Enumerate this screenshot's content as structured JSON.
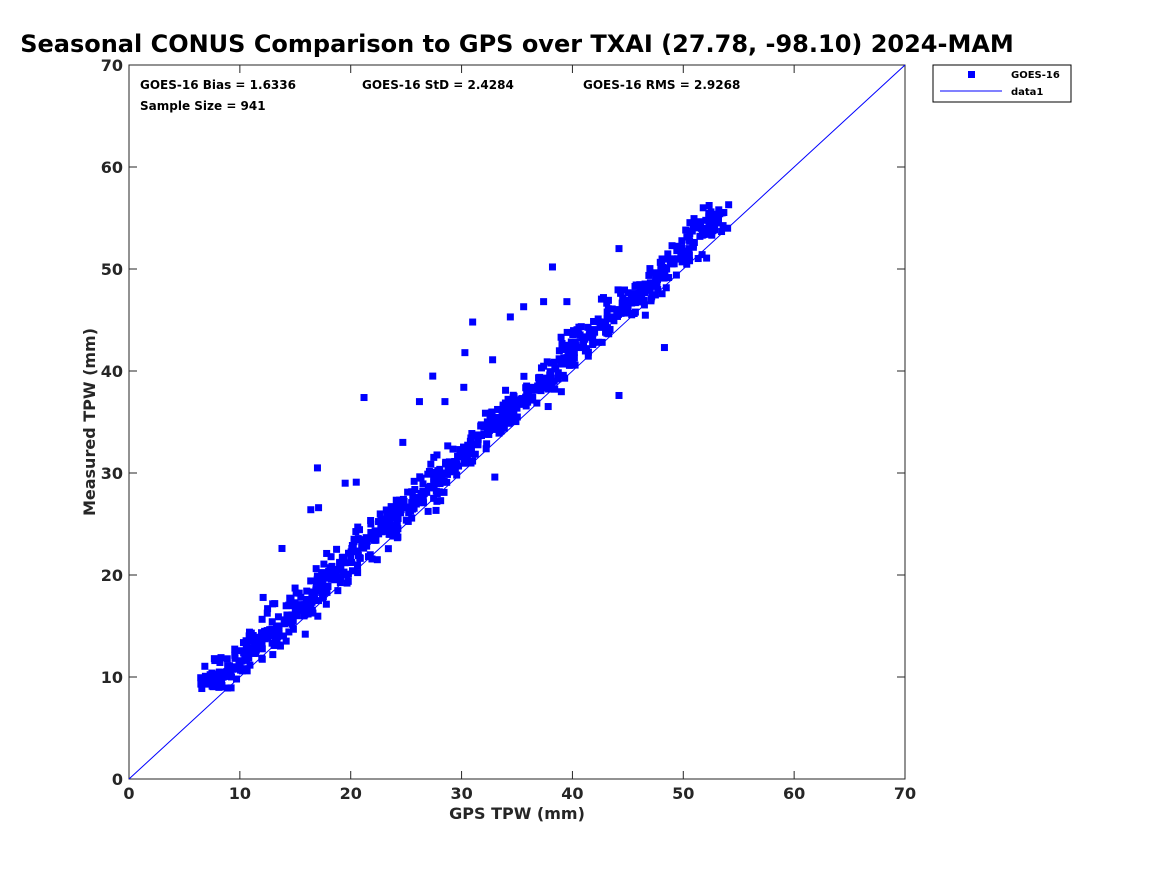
{
  "chart_data": {
    "type": "scatter",
    "title": "Seasonal CONUS Comparison to GPS over TXAI (27.78, -98.10) 2024-MAM",
    "xlabel": "GPS TPW (mm)",
    "ylabel": "Measured TPW (mm)",
    "xlim": [
      0,
      70
    ],
    "ylim": [
      0,
      70
    ],
    "xticks": [
      "0",
      "10",
      "20",
      "30",
      "40",
      "50",
      "60",
      "70"
    ],
    "yticks": [
      "0",
      "10",
      "20",
      "30",
      "40",
      "50",
      "60",
      "70"
    ],
    "grid": false,
    "legend_position": "top-right-outside",
    "series": [
      {
        "name": "GOES-16",
        "kind": "markers",
        "marker": "square",
        "color": "#0000ff",
        "points_summary": "941 points clustered along y = x + 1.63 between x = 6.5 and x = 54"
      },
      {
        "name": "data1",
        "kind": "line",
        "color": "#0000ff",
        "x": [
          0,
          70
        ],
        "y": [
          0,
          70
        ]
      }
    ],
    "stats": {
      "bias_label": "GOES-16 Bias = 1.6336",
      "std_label": "GOES-16 StD = 2.4284",
      "rms_label": "GOES-16 RMS = 2.9268",
      "sample_label": "Sample Size = 941"
    },
    "scatter_core": [
      [
        6.5,
        9.3
      ],
      [
        7.0,
        9.3
      ],
      [
        7.5,
        9.5
      ],
      [
        8.0,
        9.8
      ],
      [
        8.5,
        10.0
      ],
      [
        9.0,
        10.6
      ],
      [
        9.5,
        11.0
      ],
      [
        10.0,
        11.5
      ],
      [
        10.5,
        12.0
      ],
      [
        11.0,
        12.6
      ],
      [
        11.5,
        13.0
      ],
      [
        12.0,
        13.3
      ],
      [
        12.5,
        13.9
      ],
      [
        13.0,
        14.4
      ],
      [
        13.5,
        15.0
      ],
      [
        14.0,
        15.6
      ],
      [
        14.5,
        16.0
      ],
      [
        15.0,
        16.5
      ],
      [
        15.5,
        17.1
      ],
      [
        16.0,
        17.6
      ],
      [
        16.5,
        18.0
      ],
      [
        17.0,
        18.6
      ],
      [
        17.5,
        19.1
      ],
      [
        18.0,
        19.7
      ],
      [
        18.5,
        20.1
      ],
      [
        19.0,
        20.6
      ],
      [
        19.5,
        21.2
      ],
      [
        20.0,
        21.7
      ],
      [
        20.5,
        22.3
      ],
      [
        21.0,
        22.7
      ],
      [
        21.5,
        23.3
      ],
      [
        22.0,
        23.8
      ],
      [
        22.5,
        24.3
      ],
      [
        23.0,
        24.8
      ],
      [
        23.5,
        25.2
      ],
      [
        24.0,
        25.6
      ],
      [
        24.5,
        26.1
      ],
      [
        25.0,
        26.6
      ],
      [
        25.5,
        27.1
      ],
      [
        26.0,
        27.6
      ],
      [
        26.5,
        28.2
      ],
      [
        27.0,
        28.6
      ],
      [
        27.5,
        29.1
      ],
      [
        28.0,
        29.6
      ],
      [
        28.5,
        30.0
      ],
      [
        29.0,
        30.6
      ],
      [
        29.5,
        31.1
      ],
      [
        30.0,
        31.6
      ],
      [
        30.5,
        32.2
      ],
      [
        31.0,
        32.8
      ],
      [
        31.5,
        33.3
      ],
      [
        32.0,
        33.8
      ],
      [
        32.5,
        34.3
      ],
      [
        33.0,
        34.8
      ],
      [
        33.5,
        35.3
      ],
      [
        34.0,
        35.8
      ],
      [
        34.5,
        36.3
      ],
      [
        35.0,
        36.8
      ],
      [
        35.5,
        37.3
      ],
      [
        36.0,
        37.9
      ],
      [
        36.5,
        38.4
      ],
      [
        37.0,
        38.8
      ],
      [
        37.5,
        39.3
      ],
      [
        38.0,
        39.7
      ],
      [
        38.5,
        40.2
      ],
      [
        39.0,
        40.7
      ],
      [
        39.5,
        41.3
      ],
      [
        40.0,
        41.8
      ],
      [
        40.5,
        42.3
      ],
      [
        41.0,
        42.8
      ],
      [
        41.5,
        43.3
      ],
      [
        42.0,
        43.8
      ],
      [
        42.5,
        44.3
      ],
      [
        43.0,
        44.8
      ],
      [
        43.5,
        45.3
      ],
      [
        44.0,
        45.8
      ],
      [
        44.5,
        46.2
      ],
      [
        45.0,
        46.7
      ],
      [
        45.5,
        47.1
      ],
      [
        46.0,
        47.6
      ],
      [
        46.5,
        48.0
      ],
      [
        47.0,
        48.5
      ],
      [
        47.5,
        49.0
      ],
      [
        48.0,
        49.5
      ],
      [
        48.5,
        50.0
      ],
      [
        49.0,
        50.5
      ],
      [
        49.5,
        51.0
      ],
      [
        50.0,
        51.5
      ],
      [
        50.5,
        52.0
      ],
      [
        51.0,
        52.6
      ],
      [
        51.5,
        53.2
      ],
      [
        52.0,
        53.8
      ],
      [
        52.5,
        54.4
      ],
      [
        53.0,
        55.0
      ],
      [
        53.5,
        55.5
      ],
      [
        54.0,
        54.0
      ]
    ],
    "scatter_outliers": [
      [
        17.0,
        30.5
      ],
      [
        21.2,
        37.4
      ],
      [
        13.8,
        22.6
      ],
      [
        31.0,
        44.8
      ],
      [
        38.2,
        50.2
      ],
      [
        30.3,
        41.8
      ],
      [
        27.4,
        39.5
      ],
      [
        33.0,
        29.6
      ],
      [
        44.2,
        37.6
      ],
      [
        48.3,
        42.3
      ],
      [
        44.2,
        52.0
      ],
      [
        51.8,
        56.0
      ],
      [
        52.5,
        55.6
      ],
      [
        53.2,
        55.8
      ],
      [
        42.8,
        47.2
      ],
      [
        35.6,
        46.3
      ],
      [
        37.4,
        46.8
      ],
      [
        39.5,
        46.8
      ],
      [
        34.4,
        45.3
      ],
      [
        26.2,
        37.0
      ],
      [
        30.2,
        38.4
      ],
      [
        19.5,
        29.0
      ],
      [
        20.5,
        29.1
      ],
      [
        16.4,
        26.4
      ],
      [
        17.1,
        26.6
      ],
      [
        12.1,
        17.8
      ],
      [
        12.5,
        16.7
      ],
      [
        7.7,
        11.8
      ],
      [
        8.3,
        11.9
      ],
      [
        15.9,
        14.2
      ],
      [
        22.4,
        21.5
      ],
      [
        32.8,
        41.1
      ],
      [
        28.5,
        37.0
      ],
      [
        24.7,
        33.0
      ]
    ]
  }
}
